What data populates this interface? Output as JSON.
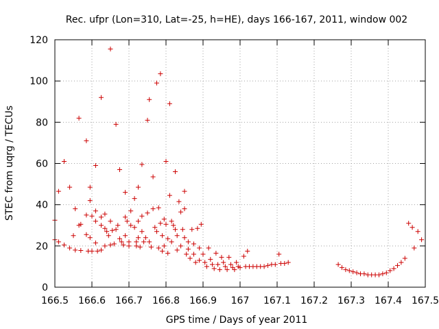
{
  "chart_data": {
    "type": "scatter",
    "title": "Rec. ufpr (Lon=310, Lat=-25, h=HE), days 166-167, 2011, window 002",
    "xlabel": "GPS time / Days of year 2011",
    "ylabel": "STEC from uqrg / TECUs",
    "xlim": [
      166.5,
      167.5
    ],
    "ylim": [
      0,
      120
    ],
    "xticks": [
      "166.5",
      "166.6",
      "166.7",
      "166.8",
      "166.9",
      "167",
      "167.1",
      "167.2",
      "167.3",
      "167.4",
      "167.5"
    ],
    "yticks": [
      "0",
      "20",
      "40",
      "60",
      "80",
      "100",
      "120"
    ],
    "grid": true,
    "marker": "+",
    "color": "#cc0000",
    "points": [
      [
        166.5,
        32.5
      ],
      [
        166.5,
        23
      ],
      [
        166.51,
        46.5
      ],
      [
        166.51,
        22
      ],
      [
        166.525,
        61
      ],
      [
        166.525,
        20.5
      ],
      [
        166.54,
        48.5
      ],
      [
        166.54,
        19
      ],
      [
        166.55,
        25
      ],
      [
        166.555,
        38
      ],
      [
        166.555,
        18
      ],
      [
        166.565,
        82
      ],
      [
        166.565,
        30
      ],
      [
        166.57,
        30.5
      ],
      [
        166.57,
        17.8
      ],
      [
        166.585,
        71
      ],
      [
        166.585,
        35
      ],
      [
        166.585,
        25.5
      ],
      [
        166.59,
        17.5
      ],
      [
        166.595,
        48.5
      ],
      [
        166.595,
        42
      ],
      [
        166.595,
        24
      ],
      [
        166.6,
        34.5
      ],
      [
        166.6,
        17.5
      ],
      [
        166.61,
        59
      ],
      [
        166.61,
        37
      ],
      [
        166.61,
        32
      ],
      [
        166.61,
        21.5
      ],
      [
        166.615,
        17.5
      ],
      [
        166.625,
        92
      ],
      [
        166.625,
        34
      ],
      [
        166.625,
        30
      ],
      [
        166.625,
        18
      ],
      [
        166.635,
        35.5
      ],
      [
        166.635,
        28.5
      ],
      [
        166.635,
        20
      ],
      [
        166.64,
        27
      ],
      [
        166.645,
        25
      ],
      [
        166.65,
        115.5
      ],
      [
        166.65,
        32
      ],
      [
        166.65,
        20.5
      ],
      [
        166.655,
        27.5
      ],
      [
        166.66,
        21
      ],
      [
        166.665,
        79
      ],
      [
        166.665,
        28
      ],
      [
        166.67,
        30
      ],
      [
        166.675,
        57
      ],
      [
        166.675,
        23.5
      ],
      [
        166.68,
        22
      ],
      [
        166.685,
        20.5
      ],
      [
        166.69,
        46
      ],
      [
        166.69,
        34
      ],
      [
        166.69,
        25
      ],
      [
        166.695,
        32
      ],
      [
        166.7,
        22
      ],
      [
        166.7,
        20
      ],
      [
        166.705,
        37
      ],
      [
        166.705,
        30
      ],
      [
        166.715,
        43
      ],
      [
        166.715,
        29
      ],
      [
        166.72,
        22
      ],
      [
        166.72,
        20
      ],
      [
        166.725,
        48.5
      ],
      [
        166.725,
        32
      ],
      [
        166.725,
        24
      ],
      [
        166.73,
        19.5
      ],
      [
        166.735,
        59.5
      ],
      [
        166.735,
        34.5
      ],
      [
        166.735,
        27
      ],
      [
        166.74,
        22
      ],
      [
        166.745,
        24
      ],
      [
        166.75,
        81
      ],
      [
        166.75,
        36
      ],
      [
        166.755,
        91
      ],
      [
        166.755,
        22
      ],
      [
        166.76,
        19.5
      ],
      [
        166.765,
        53.5
      ],
      [
        166.765,
        38
      ],
      [
        166.77,
        29
      ],
      [
        166.775,
        99
      ],
      [
        166.775,
        27
      ],
      [
        166.78,
        38.5
      ],
      [
        166.78,
        19
      ],
      [
        166.785,
        103.5
      ],
      [
        166.785,
        31
      ],
      [
        166.79,
        25
      ],
      [
        166.79,
        17.5
      ],
      [
        166.795,
        33
      ],
      [
        166.795,
        20
      ],
      [
        166.8,
        61
      ],
      [
        166.8,
        30.5
      ],
      [
        166.805,
        23.5
      ],
      [
        166.805,
        16.5
      ],
      [
        166.81,
        89
      ],
      [
        166.81,
        44.5
      ],
      [
        166.815,
        32
      ],
      [
        166.815,
        22
      ],
      [
        166.82,
        30
      ],
      [
        166.825,
        56
      ],
      [
        166.825,
        28
      ],
      [
        166.83,
        25
      ],
      [
        166.83,
        18
      ],
      [
        166.835,
        41.5
      ],
      [
        166.84,
        36.5
      ],
      [
        166.84,
        20
      ],
      [
        166.845,
        28
      ],
      [
        166.85,
        46.5
      ],
      [
        166.85,
        38
      ],
      [
        166.85,
        24
      ],
      [
        166.855,
        16
      ],
      [
        166.86,
        22
      ],
      [
        166.86,
        18.5
      ],
      [
        166.865,
        14
      ],
      [
        166.87,
        28
      ],
      [
        166.875,
        21
      ],
      [
        166.875,
        16
      ],
      [
        166.88,
        12
      ],
      [
        166.885,
        28.5
      ],
      [
        166.89,
        19
      ],
      [
        166.89,
        13
      ],
      [
        166.895,
        30.5
      ],
      [
        166.9,
        16
      ],
      [
        166.905,
        12
      ],
      [
        166.91,
        10
      ],
      [
        166.915,
        19
      ],
      [
        166.92,
        13.5
      ],
      [
        166.925,
        11
      ],
      [
        166.93,
        9
      ],
      [
        166.935,
        16.5
      ],
      [
        166.94,
        11
      ],
      [
        166.945,
        8.5
      ],
      [
        166.95,
        14.5
      ],
      [
        166.955,
        12
      ],
      [
        166.96,
        10
      ],
      [
        166.965,
        8.5
      ],
      [
        166.97,
        14.5
      ],
      [
        166.975,
        11
      ],
      [
        166.98,
        9.5
      ],
      [
        166.985,
        8.5
      ],
      [
        166.99,
        12
      ],
      [
        166.995,
        10
      ],
      [
        167.0,
        9.5
      ],
      [
        167.01,
        15
      ],
      [
        167.015,
        10
      ],
      [
        167.02,
        17.5
      ],
      [
        167.025,
        10
      ],
      [
        167.035,
        10
      ],
      [
        167.045,
        10
      ],
      [
        167.055,
        10
      ],
      [
        167.065,
        10
      ],
      [
        167.075,
        10.5
      ],
      [
        167.085,
        11
      ],
      [
        167.095,
        11
      ],
      [
        167.105,
        16
      ],
      [
        167.11,
        11.5
      ],
      [
        167.12,
        11.5
      ],
      [
        167.13,
        12
      ],
      [
        167.265,
        11
      ],
      [
        167.275,
        9.5
      ],
      [
        167.285,
        8.5
      ],
      [
        167.295,
        8
      ],
      [
        167.305,
        7.5
      ],
      [
        167.315,
        7
      ],
      [
        167.325,
        6.5
      ],
      [
        167.335,
        6.5
      ],
      [
        167.345,
        6
      ],
      [
        167.355,
        6
      ],
      [
        167.365,
        6
      ],
      [
        167.375,
        6
      ],
      [
        167.385,
        6.5
      ],
      [
        167.395,
        7
      ],
      [
        167.405,
        8
      ],
      [
        167.415,
        9
      ],
      [
        167.425,
        10.5
      ],
      [
        167.435,
        12
      ],
      [
        167.445,
        14
      ],
      [
        167.455,
        31
      ],
      [
        167.465,
        29
      ],
      [
        167.47,
        19
      ],
      [
        167.48,
        27
      ],
      [
        167.49,
        23
      ]
    ]
  }
}
